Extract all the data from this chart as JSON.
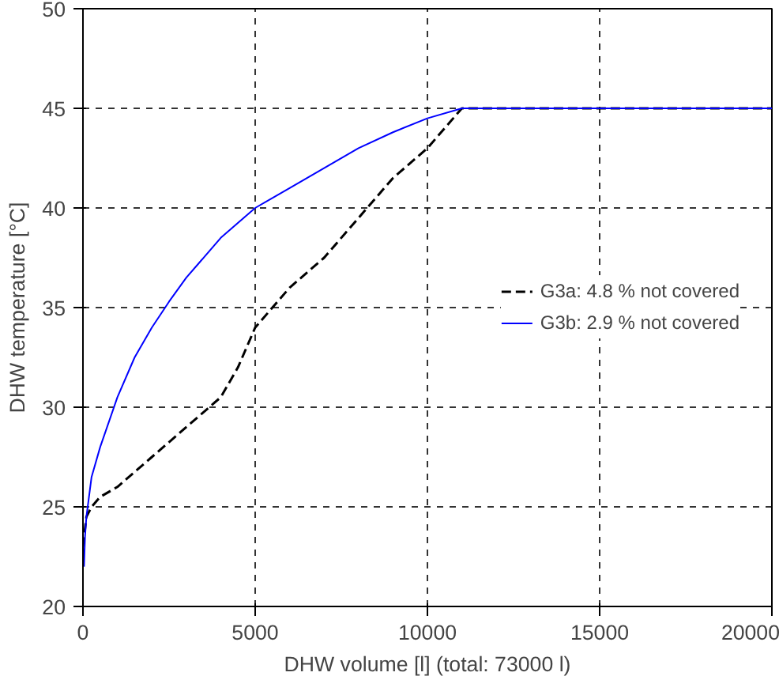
{
  "chart_data": {
    "type": "line",
    "xlabel": "DHW volume [l] (total: 73000 l)",
    "ylabel": "DHW temperature [°C]",
    "xlim": [
      0,
      20000
    ],
    "ylim": [
      20,
      50
    ],
    "xticks": [
      0,
      5000,
      10000,
      15000,
      20000
    ],
    "yticks": [
      20,
      25,
      30,
      35,
      40,
      45,
      50
    ],
    "grid": true,
    "legend": "right",
    "marker": "none",
    "series": [
      {
        "name": "G3a: 4.8 % not covered",
        "color": "#000000",
        "line_style": "dashed",
        "x": [
          0,
          100,
          250,
          500,
          1000,
          2000,
          3000,
          4000,
          4500,
          5000,
          5500,
          6000,
          7000,
          8000,
          9000,
          10000,
          10500,
          11000,
          12000,
          20000
        ],
        "values": [
          23,
          24.5,
          25,
          25.5,
          26,
          27.5,
          29,
          30.5,
          32,
          34,
          35,
          36,
          37.5,
          39.5,
          41.5,
          43,
          44,
          45,
          45,
          45
        ]
      },
      {
        "name": "G3b: 2.9 % not covered",
        "color": "#0000ff",
        "line_style": "solid",
        "x": [
          30,
          60,
          100,
          250,
          500,
          1000,
          1500,
          2000,
          2500,
          3000,
          4000,
          5000,
          6000,
          7000,
          8000,
          9000,
          10000,
          11000,
          12000,
          20000
        ],
        "values": [
          22,
          23.5,
          24.5,
          26.5,
          28,
          30.5,
          32.5,
          34,
          35.3,
          36.5,
          38.5,
          40,
          41,
          42,
          43,
          43.8,
          44.5,
          45,
          45,
          45
        ]
      }
    ]
  }
}
